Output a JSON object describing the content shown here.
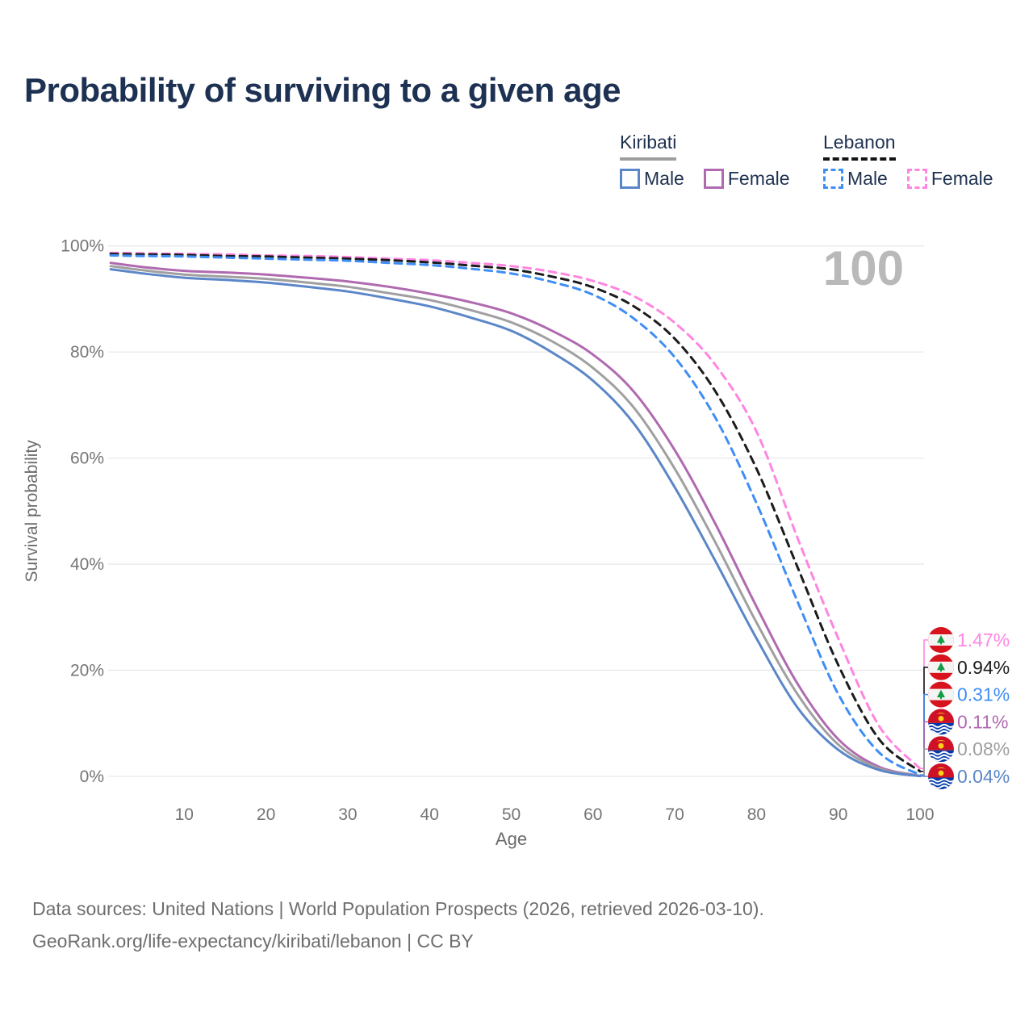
{
  "title": "Probability of surviving to a given age",
  "watermark": "100",
  "legend": {
    "groups": [
      {
        "country": "Kiribati",
        "line_style": "solid",
        "underline_color": "#9e9e9e",
        "items": [
          {
            "label": "Male",
            "color": "#5b86c8",
            "dashed": false
          },
          {
            "label": "Female",
            "color": "#b06ab0",
            "dashed": false
          }
        ]
      },
      {
        "country": "Lebanon",
        "line_style": "dashed",
        "underline_color": "#141414",
        "items": [
          {
            "label": "Male",
            "color": "#3f8ef5",
            "dashed": true
          },
          {
            "label": "Female",
            "color": "#ff85e1",
            "dashed": true
          }
        ]
      }
    ]
  },
  "chart_data": {
    "type": "line",
    "title": "Probability of surviving to a given age",
    "xlabel": "Age",
    "ylabel": "Survival probability",
    "xlim": [
      1,
      100
    ],
    "ylim": [
      0,
      100
    ],
    "grid": "horizontal",
    "legend_position": "top-right",
    "x_ticks": [
      "10",
      "20",
      "30",
      "40",
      "50",
      "60",
      "70",
      "80",
      "90",
      "100"
    ],
    "y_ticks": [
      "0%",
      "20%",
      "40%",
      "60%",
      "80%",
      "100%"
    ],
    "ages": [
      1,
      5,
      10,
      15,
      20,
      25,
      30,
      35,
      40,
      45,
      50,
      55,
      60,
      65,
      70,
      75,
      80,
      85,
      90,
      95,
      100
    ],
    "series": [
      {
        "name": "Lebanon Female",
        "country": "Lebanon",
        "sex": "Female",
        "color": "#ff85e1",
        "dashed": true,
        "end_label": "1.47%",
        "values": [
          98.7,
          98.6,
          98.5,
          98.4,
          98.2,
          98.1,
          97.9,
          97.6,
          97.3,
          96.8,
          96.2,
          95.1,
          93.4,
          90.5,
          85.5,
          77.5,
          65.0,
          45.0,
          26.0,
          9.5,
          1.47
        ]
      },
      {
        "name": "Lebanon Both sexes",
        "country": "Lebanon",
        "sex": "Both",
        "color": "#1c1c1c",
        "dashed": true,
        "end_label": "0.94%",
        "values": [
          98.5,
          98.4,
          98.3,
          98.1,
          98.0,
          97.8,
          97.6,
          97.3,
          96.9,
          96.3,
          95.6,
          94.2,
          92.2,
          88.6,
          82.5,
          72.5,
          58.0,
          39.5,
          21.0,
          7.0,
          0.94
        ]
      },
      {
        "name": "Lebanon Male",
        "country": "Lebanon",
        "sex": "Male",
        "color": "#3f8ef5",
        "dashed": true,
        "end_label": "0.31%",
        "values": [
          98.2,
          98.1,
          98.0,
          97.8,
          97.6,
          97.4,
          97.2,
          96.8,
          96.4,
          95.7,
          94.8,
          93.2,
          90.8,
          86.3,
          79.0,
          67.5,
          51.5,
          33.0,
          15.5,
          4.5,
          0.31
        ]
      },
      {
        "name": "Kiribati Female",
        "country": "Kiribati",
        "sex": "Female",
        "color": "#b06ab0",
        "dashed": false,
        "end_label": "0.11%",
        "values": [
          96.8,
          96.0,
          95.3,
          95.0,
          94.6,
          94.0,
          93.3,
          92.3,
          91.0,
          89.4,
          87.3,
          84.0,
          79.5,
          72.5,
          61.5,
          47.5,
          32.0,
          17.5,
          7.0,
          1.8,
          0.11
        ]
      },
      {
        "name": "Kiribati Both sexes",
        "country": "Kiribati",
        "sex": "Both",
        "color": "#a0a0a0",
        "dashed": false,
        "end_label": "0.08%",
        "values": [
          96.2,
          95.4,
          94.6,
          94.2,
          93.8,
          93.1,
          92.3,
          91.1,
          89.8,
          87.9,
          85.6,
          82.0,
          77.0,
          69.5,
          58.0,
          44.0,
          29.0,
          15.5,
          6.0,
          1.5,
          0.08
        ]
      },
      {
        "name": "Kiribati Male",
        "country": "Kiribati",
        "sex": "Male",
        "color": "#5b86c8",
        "dashed": false,
        "end_label": "0.04%",
        "values": [
          95.6,
          94.8,
          94.0,
          93.6,
          93.1,
          92.3,
          91.4,
          90.1,
          88.6,
          86.5,
          84.0,
          79.9,
          74.6,
          66.5,
          54.5,
          40.5,
          26.0,
          13.0,
          5.0,
          1.2,
          0.04
        ]
      }
    ]
  },
  "endpoints": [
    {
      "value": "1.47%",
      "color": "#ff85e1",
      "flag": "lebanon",
      "series": "Lebanon Female"
    },
    {
      "value": "0.94%",
      "color": "#1c1c1c",
      "flag": "lebanon",
      "series": "Lebanon Both sexes"
    },
    {
      "value": "0.31%",
      "color": "#3f8ef5",
      "flag": "lebanon",
      "series": "Lebanon Male"
    },
    {
      "value": "0.11%",
      "color": "#b06ab0",
      "flag": "kiribati",
      "series": "Kiribati Female"
    },
    {
      "value": "0.08%",
      "color": "#9e9e9e",
      "flag": "kiribati",
      "series": "Kiribati Both sexes"
    },
    {
      "value": "0.04%",
      "color": "#5b86c8",
      "flag": "kiribati",
      "series": "Kiribati Male"
    }
  ],
  "style_colors": {
    "title": "#1d3152",
    "axis_text": "#757575",
    "axis_title": "#6b6b6b",
    "gridline": "#e9e9e9",
    "watermark": "#b9b9b9",
    "footer": "#6e6e6e"
  },
  "footer": {
    "line1": "Data sources: United Nations | World Population Prospects (2026, retrieved 2026-03-10).",
    "line2": "GeoRank.org/life-expectancy/kiribati/lebanon | CC BY"
  }
}
